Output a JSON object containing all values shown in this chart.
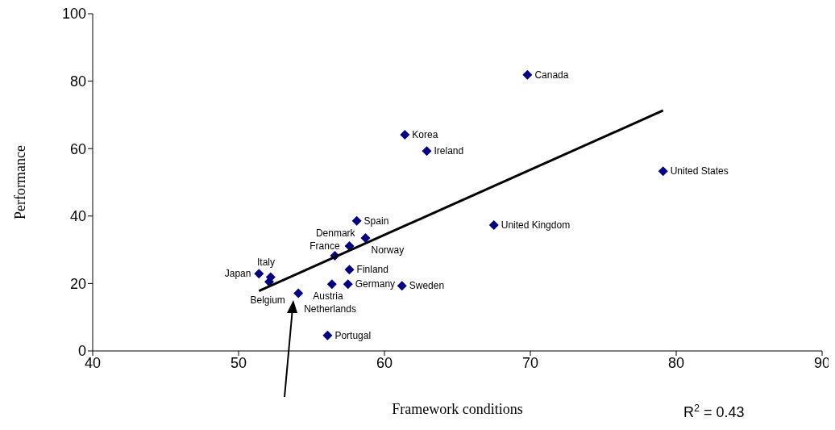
{
  "chart_data": {
    "type": "scatter",
    "xlabel": "Framework conditions",
    "ylabel": "Performance",
    "xlim": [
      40,
      90
    ],
    "xticks": [
      40,
      50,
      60,
      70,
      80,
      90
    ],
    "ylim": [
      0,
      100
    ],
    "yticks": [
      0,
      20,
      40,
      60,
      80,
      100
    ],
    "series": [
      {
        "type": "scatter",
        "marker": "diamond",
        "color": "#000080",
        "x": [
          69.8,
          61.4,
          62.9,
          79.1,
          58.1,
          67.5,
          58.7,
          57.6,
          56.6,
          57.6,
          51.4,
          52.2,
          52.1,
          57.5,
          56.4,
          61.2,
          54.1,
          56.1
        ],
        "values": [
          81.9,
          64.1,
          59.3,
          53.3,
          38.6,
          37.3,
          33.5,
          31.1,
          28.2,
          24.1,
          22.9,
          21.9,
          20.5,
          19.8,
          19.8,
          19.3,
          17.1,
          4.6
        ]
      },
      {
        "type": "line",
        "color": "#000000",
        "x": [
          51.4,
          79.1
        ],
        "values": [
          17.8,
          71.3
        ]
      }
    ],
    "annotations": [
      {
        "text": "Canada",
        "x": 69.8,
        "y": 81.9
      },
      {
        "text": "Korea",
        "x": 61.4,
        "y": 64.1
      },
      {
        "text": "Ireland",
        "x": 62.9,
        "y": 59.3
      },
      {
        "text": "United States",
        "x": 79.1,
        "y": 53.3
      },
      {
        "text": "Spain",
        "x": 58.1,
        "y": 38.6
      },
      {
        "text": "United Kingdom",
        "x": 67.5,
        "y": 37.3
      },
      {
        "text": "Norway",
        "x": 58.7,
        "y": 33.5
      },
      {
        "text": "France",
        "x": 57.6,
        "y": 31.1
      },
      {
        "text": "Denmark",
        "x": 56.6,
        "y": 28.2
      },
      {
        "text": "Finland",
        "x": 57.6,
        "y": 24.1
      },
      {
        "text": "Japan",
        "x": 51.4,
        "y": 22.9
      },
      {
        "text": "Italy",
        "x": 52.2,
        "y": 21.9
      },
      {
        "text": "Belgium",
        "x": 52.1,
        "y": 20.5
      },
      {
        "text": "Germany",
        "x": 57.5,
        "y": 19.8
      },
      {
        "text": "Austria",
        "x": 56.4,
        "y": 19.8
      },
      {
        "text": "Sweden",
        "x": 61.2,
        "y": 19.3
      },
      {
        "text": "Netherlands",
        "x": 54.1,
        "y": 17.1
      },
      {
        "text": "Portugal",
        "x": 56.1,
        "y": 4.6
      },
      "R$^{2}$ = 0.43"
    ]
  }
}
